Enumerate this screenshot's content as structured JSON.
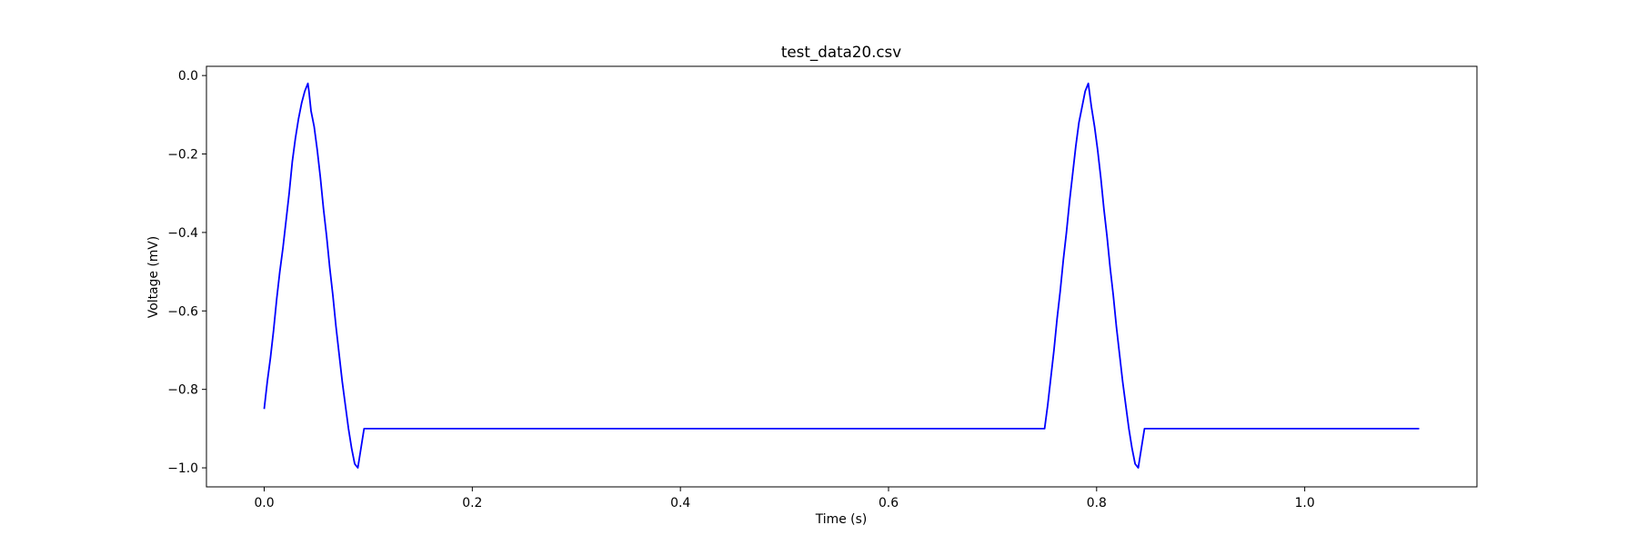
{
  "chart_data": {
    "type": "line",
    "title": "test_data20.csv",
    "xlabel": "Time (s)",
    "ylabel": "Voltage (mV)",
    "xlim": [
      -0.0555,
      1.1655
    ],
    "ylim": [
      -1.0485,
      0.0235
    ],
    "xticks": [
      0.0,
      0.2,
      0.4,
      0.6,
      0.8,
      1.0
    ],
    "xtick_labels": [
      "0.0",
      "0.2",
      "0.4",
      "0.6",
      "0.8",
      "1.0"
    ],
    "yticks": [
      0.0,
      -0.2,
      -0.4,
      -0.6,
      -0.8,
      -1.0
    ],
    "ytick_labels": [
      "0.0",
      "−0.2",
      "−0.4",
      "−0.6",
      "−0.8",
      "−1.0"
    ],
    "grid": false,
    "series": [
      {
        "color": "#0000ff",
        "x": [
          0.0,
          0.003,
          0.006,
          0.009,
          0.012,
          0.015,
          0.018,
          0.021,
          0.024,
          0.027,
          0.03,
          0.033,
          0.036,
          0.039,
          0.042,
          0.043,
          0.045,
          0.048,
          0.051,
          0.054,
          0.057,
          0.06,
          0.063,
          0.066,
          0.069,
          0.072,
          0.075,
          0.078,
          0.081,
          0.084,
          0.087,
          0.09,
          0.093,
          0.096,
          0.099,
          0.1,
          0.75,
          0.753,
          0.756,
          0.759,
          0.762,
          0.765,
          0.768,
          0.771,
          0.774,
          0.777,
          0.78,
          0.783,
          0.786,
          0.789,
          0.792,
          0.793,
          0.795,
          0.798,
          0.801,
          0.804,
          0.807,
          0.81,
          0.813,
          0.816,
          0.819,
          0.822,
          0.825,
          0.828,
          0.831,
          0.834,
          0.837,
          0.84,
          0.843,
          0.846,
          0.849,
          0.85,
          1.11
        ],
        "y": [
          -0.85,
          -0.78,
          -0.72,
          -0.65,
          -0.57,
          -0.5,
          -0.44,
          -0.37,
          -0.3,
          -0.22,
          -0.16,
          -0.11,
          -0.07,
          -0.04,
          -0.02,
          -0.04,
          -0.09,
          -0.13,
          -0.19,
          -0.26,
          -0.34,
          -0.41,
          -0.49,
          -0.56,
          -0.64,
          -0.71,
          -0.78,
          -0.84,
          -0.9,
          -0.95,
          -0.99,
          -1.0,
          -0.95,
          -0.9,
          -0.9,
          -0.9,
          -0.9,
          -0.84,
          -0.77,
          -0.7,
          -0.62,
          -0.55,
          -0.47,
          -0.4,
          -0.32,
          -0.25,
          -0.18,
          -0.12,
          -0.08,
          -0.04,
          -0.02,
          -0.04,
          -0.08,
          -0.13,
          -0.19,
          -0.26,
          -0.34,
          -0.41,
          -0.49,
          -0.56,
          -0.64,
          -0.71,
          -0.78,
          -0.84,
          -0.9,
          -0.95,
          -0.99,
          -1.0,
          -0.95,
          -0.9,
          -0.9,
          -0.9,
          -0.9
        ]
      }
    ]
  }
}
